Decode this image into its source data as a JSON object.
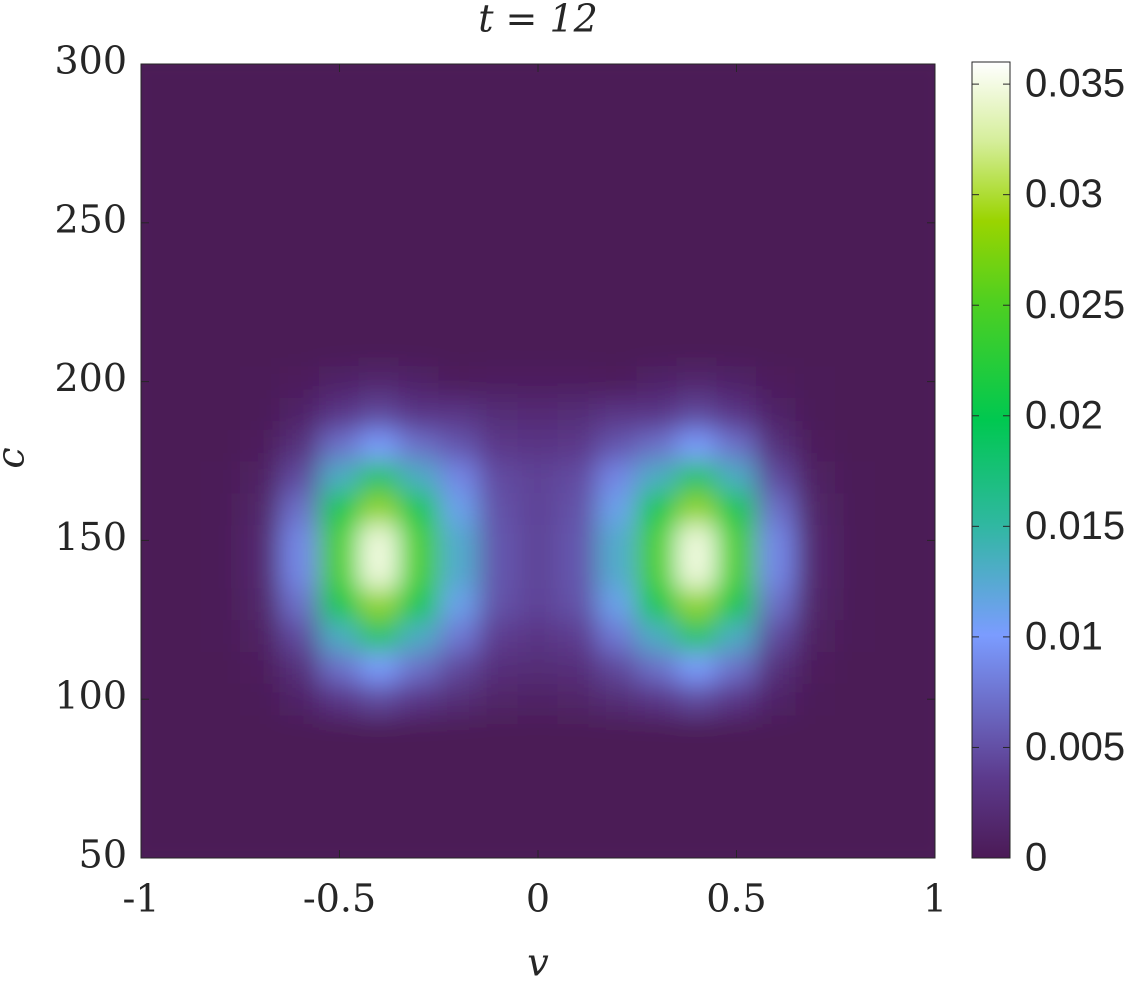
{
  "chart_data": {
    "type": "contour",
    "title": "t = 12",
    "xlabel": "v",
    "ylabel": "c",
    "x": [
      -1,
      -0.9,
      -0.8,
      -0.7,
      -0.6,
      -0.5,
      -0.4,
      -0.3,
      -0.2,
      -0.1,
      0,
      0.1,
      0.2,
      0.3,
      0.4,
      0.5,
      0.6,
      0.7,
      0.8,
      0.9,
      1
    ],
    "y": [
      50,
      60,
      70,
      80,
      90,
      100,
      110,
      120,
      130,
      140,
      150,
      160,
      170,
      180,
      190,
      200,
      210,
      220,
      230,
      240,
      250,
      260,
      270,
      280,
      290,
      300
    ],
    "z": [
      [
        0,
        0,
        0,
        0,
        0,
        0,
        0,
        0,
        0,
        0,
        0,
        0,
        0,
        0,
        0,
        0,
        0,
        0,
        0,
        0,
        0
      ],
      [
        0,
        0,
        0,
        0,
        0,
        0,
        0,
        0,
        0,
        0,
        0,
        0,
        0,
        0,
        0,
        0,
        0,
        0,
        0,
        0,
        0
      ],
      [
        0,
        0,
        0,
        0,
        0,
        0,
        0,
        0,
        0,
        0,
        0,
        0,
        0,
        0,
        0,
        0,
        0,
        0,
        0,
        0,
        0
      ],
      [
        0,
        0,
        0,
        0,
        0,
        0,
        0,
        0,
        0,
        0,
        0,
        0,
        0,
        0,
        0,
        0,
        0,
        0,
        0,
        0,
        0
      ],
      [
        0,
        0,
        0,
        0,
        0,
        0,
        0,
        0,
        0,
        0,
        0,
        0,
        0,
        0,
        0,
        0,
        0,
        0,
        0,
        0,
        0
      ],
      [
        0,
        0,
        0,
        0.0002,
        0.0011,
        0.0032,
        0.0045,
        0.0032,
        0.0021,
        0.0012,
        0.001,
        0.0012,
        0.0021,
        0.0032,
        0.0045,
        0.0032,
        0.0011,
        0.0002,
        0,
        0,
        0
      ],
      [
        0,
        0,
        0,
        0.0004,
        0.0025,
        0.0071,
        0.0101,
        0.0071,
        0.0045,
        0.0024,
        0.0021,
        0.0024,
        0.0045,
        0.0071,
        0.0101,
        0.0071,
        0.0025,
        0.0004,
        0,
        0,
        0
      ],
      [
        0,
        0,
        0.0001,
        0.0008,
        0.0047,
        0.0132,
        0.0187,
        0.0132,
        0.0077,
        0.0038,
        0.0031,
        0.0038,
        0.0077,
        0.0132,
        0.0187,
        0.0132,
        0.0047,
        0.0008,
        0.0001,
        0,
        0
      ],
      [
        0,
        0,
        0.0001,
        0.0012,
        0.0071,
        0.0201,
        0.0284,
        0.0201,
        0.0111,
        0.0052,
        0.0042,
        0.0052,
        0.0111,
        0.0201,
        0.0284,
        0.0201,
        0.0071,
        0.0012,
        0.0001,
        0,
        0
      ],
      [
        0,
        0,
        0.0001,
        0.0015,
        0.0087,
        0.0247,
        0.0349,
        0.0247,
        0.0127,
        0.0055,
        0.0043,
        0.0055,
        0.0127,
        0.0247,
        0.0349,
        0.0247,
        0.0087,
        0.0015,
        0.0001,
        0,
        0
      ],
      [
        0,
        0,
        0.0001,
        0.0015,
        0.0087,
        0.0247,
        0.0349,
        0.0247,
        0.0127,
        0.0055,
        0.0043,
        0.0055,
        0.0127,
        0.0247,
        0.0349,
        0.0247,
        0.0087,
        0.0015,
        0.0001,
        0,
        0
      ],
      [
        0,
        0,
        0.0001,
        0.0012,
        0.0071,
        0.0201,
        0.0284,
        0.0201,
        0.0111,
        0.0052,
        0.0042,
        0.0052,
        0.0111,
        0.0201,
        0.0284,
        0.0201,
        0.0071,
        0.0012,
        0.0001,
        0,
        0
      ],
      [
        0,
        0,
        0.0001,
        0.0008,
        0.0047,
        0.0132,
        0.0187,
        0.0132,
        0.0087,
        0.0048,
        0.0041,
        0.0048,
        0.0087,
        0.0132,
        0.0187,
        0.0132,
        0.0047,
        0.0008,
        0.0001,
        0,
        0
      ],
      [
        0,
        0,
        0,
        0.0004,
        0.0025,
        0.0071,
        0.0101,
        0.0071,
        0.0055,
        0.0034,
        0.0031,
        0.0034,
        0.0055,
        0.0071,
        0.0101,
        0.0071,
        0.0025,
        0.0004,
        0,
        0,
        0
      ],
      [
        0,
        0,
        0,
        0.0002,
        0.0011,
        0.0032,
        0.0045,
        0.0032,
        0.0031,
        0.0022,
        0.002,
        0.0022,
        0.0031,
        0.0032,
        0.0045,
        0.0032,
        0.0011,
        0.0002,
        0,
        0,
        0
      ],
      [
        0,
        0,
        0,
        0.0001,
        0.0004,
        0.0011,
        0.0016,
        0.0011,
        0.0004,
        0.0006,
        0.0005,
        0.0006,
        0.0004,
        0.0011,
        0.0016,
        0.0011,
        0.0004,
        0.0001,
        0,
        0,
        0
      ],
      [
        0,
        0,
        0,
        0,
        0,
        0,
        0,
        0,
        0,
        0,
        0,
        0,
        0,
        0,
        0,
        0,
        0,
        0,
        0,
        0,
        0
      ],
      [
        0,
        0,
        0,
        0,
        0,
        0,
        0,
        0,
        0,
        0,
        0,
        0,
        0,
        0,
        0,
        0,
        0,
        0,
        0,
        0,
        0
      ],
      [
        0,
        0,
        0,
        0,
        0,
        0,
        0,
        0,
        0,
        0,
        0,
        0,
        0,
        0,
        0,
        0,
        0,
        0,
        0,
        0,
        0
      ],
      [
        0,
        0,
        0,
        0,
        0,
        0,
        0,
        0,
        0,
        0,
        0,
        0,
        0,
        0,
        0,
        0,
        0,
        0,
        0,
        0,
        0
      ],
      [
        0,
        0,
        0,
        0,
        0,
        0,
        0,
        0,
        0,
        0,
        0,
        0,
        0,
        0,
        0,
        0,
        0,
        0,
        0,
        0,
        0
      ],
      [
        0,
        0,
        0,
        0,
        0,
        0,
        0,
        0,
        0,
        0,
        0,
        0,
        0,
        0,
        0,
        0,
        0,
        0,
        0,
        0,
        0
      ],
      [
        0,
        0,
        0,
        0,
        0,
        0,
        0,
        0,
        0,
        0,
        0,
        0,
        0,
        0,
        0,
        0,
        0,
        0,
        0,
        0,
        0
      ],
      [
        0,
        0,
        0,
        0,
        0,
        0,
        0,
        0,
        0,
        0,
        0,
        0,
        0,
        0,
        0,
        0,
        0,
        0,
        0,
        0,
        0
      ],
      [
        0,
        0,
        0,
        0,
        0,
        0,
        0,
        0,
        0,
        0,
        0,
        0,
        0,
        0,
        0,
        0,
        0,
        0,
        0,
        0,
        0
      ],
      [
        0,
        0,
        0,
        0,
        0,
        0,
        0,
        0,
        0,
        0,
        0,
        0,
        0,
        0,
        0,
        0,
        0,
        0,
        0,
        0,
        0
      ]
    ],
    "xlim": [
      -1,
      1
    ],
    "ylim": [
      50,
      300
    ],
    "xticks": [
      -1,
      -0.5,
      0,
      0.5,
      1
    ],
    "yticks": [
      50,
      100,
      150,
      200,
      250,
      300
    ],
    "clim": [
      0,
      0.036
    ],
    "cticks": [
      0,
      0.005,
      0.01,
      0.015,
      0.02,
      0.025,
      0.03,
      0.035
    ]
  }
}
